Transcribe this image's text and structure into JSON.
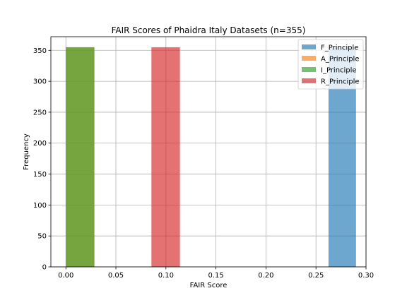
{
  "chart_data": {
    "type": "bar",
    "title": "FAIR Scores of Phaidra Italy Datasets (n=355)",
    "xlabel": "FAIR Score",
    "ylabel": "Frequency",
    "xlim": [
      -0.015,
      0.3
    ],
    "ylim": [
      0,
      372
    ],
    "xticks": [
      "0.00",
      "0.05",
      "0.10",
      "0.15",
      "0.20",
      "0.25",
      "0.30"
    ],
    "xtick_values": [
      0.0,
      0.05,
      0.1,
      0.15,
      0.2,
      0.25,
      0.3
    ],
    "yticks": [
      "0",
      "50",
      "100",
      "150",
      "200",
      "250",
      "300",
      "350"
    ],
    "ytick_values": [
      0,
      50,
      100,
      150,
      200,
      250,
      300,
      350
    ],
    "grid": true,
    "legend_position": "top-right",
    "series": [
      {
        "name": "F_Principle",
        "color": "#1f77b4",
        "bars": [
          {
            "x0": 0.2625,
            "x1": 0.29,
            "value": 355
          }
        ]
      },
      {
        "name": "A_Principle",
        "color": "#ff7f0e",
        "bars": [
          {
            "x0": 0.0,
            "x1": 0.0285,
            "value": 355
          }
        ]
      },
      {
        "name": "I_Principle",
        "color": "#2ca02c",
        "bars": [
          {
            "x0": 0.0,
            "x1": 0.0285,
            "value": 355
          }
        ]
      },
      {
        "name": "R_Principle",
        "color": "#d62728",
        "bars": [
          {
            "x0": 0.0855,
            "x1": 0.114,
            "value": 355
          }
        ]
      }
    ],
    "alpha": 0.65
  }
}
